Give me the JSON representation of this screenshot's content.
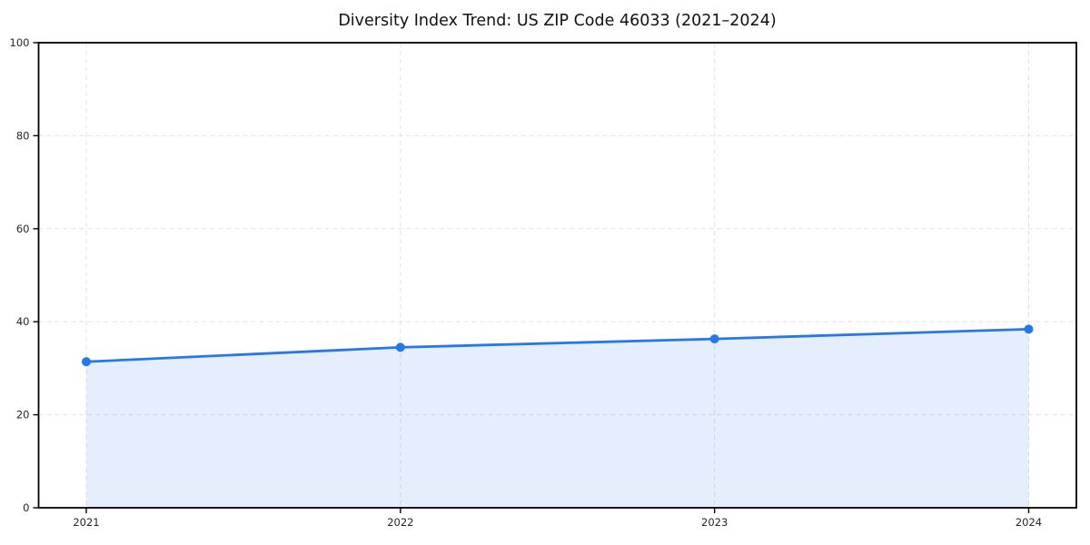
{
  "page": {
    "background_color": "#ffffff"
  },
  "chart_data": {
    "type": "line",
    "subtype": "area-filled-line-with-markers",
    "title": "Diversity Index Trend: US ZIP Code 46033 (2021–2024)",
    "x": [
      "2021",
      "2022",
      "2023",
      "2024"
    ],
    "series": [
      {
        "name": "Diversity Index",
        "values": [
          31.4,
          34.5,
          36.3,
          38.4
        ]
      }
    ],
    "xlabel": "",
    "ylabel": "",
    "ylim": [
      0,
      100
    ],
    "yticks": [
      0,
      20,
      40,
      60,
      80,
      100
    ],
    "grid": {
      "visible": true,
      "style": "dashed",
      "color": "#e2e2e2"
    },
    "legend_position": "none",
    "line_color": "#2677e8",
    "fill_color": "#2677e8",
    "fill_opacity": 0.12,
    "marker": {
      "shape": "circle",
      "radius": 5
    },
    "line_width": 2.8,
    "frame_color": "#000000",
    "tick_label_color": "#262626",
    "title_color": "#111111"
  }
}
